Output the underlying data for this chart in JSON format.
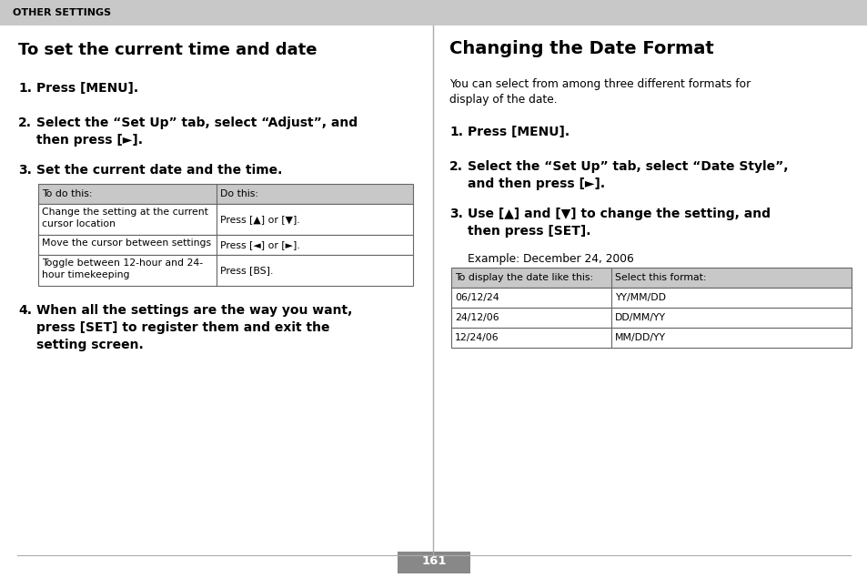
{
  "bg_color": "#ffffff",
  "header_bg": "#c8c8c8",
  "header_text": "OTHER SETTINGS",
  "left_title": "To set the current time and date",
  "right_title": "Changing the Date Format",
  "right_subtitle": "You can select from among three different formats for\ndisplay of the date.",
  "left_table_header": [
    "To do this:",
    "Do this:"
  ],
  "left_table_rows": [
    [
      "Change the setting at the current\ncursor location",
      "Press [▲] or [▼]."
    ],
    [
      "Move the cursor between settings",
      "Press [◄] or [►]."
    ],
    [
      "Toggle between 12-hour and 24-\nhour timekeeping",
      "Press [BS]."
    ]
  ],
  "left_step4_text": "When all the settings are the way you want,\npress [SET] to register them and exit the\nsetting screen.",
  "right_example": "Example: December 24, 2006",
  "right_table_header": [
    "To display the date like this:",
    "Select this format:"
  ],
  "right_table_rows": [
    [
      "06/12/24",
      "YY/MM/DD"
    ],
    [
      "24/12/06",
      "DD/MM/YY"
    ],
    [
      "12/24/06",
      "MM/DD/YY"
    ]
  ],
  "page_number": "161",
  "table_header_bg": "#c8c8c8",
  "table_bg": "#ffffff",
  "border_color": "#666666"
}
